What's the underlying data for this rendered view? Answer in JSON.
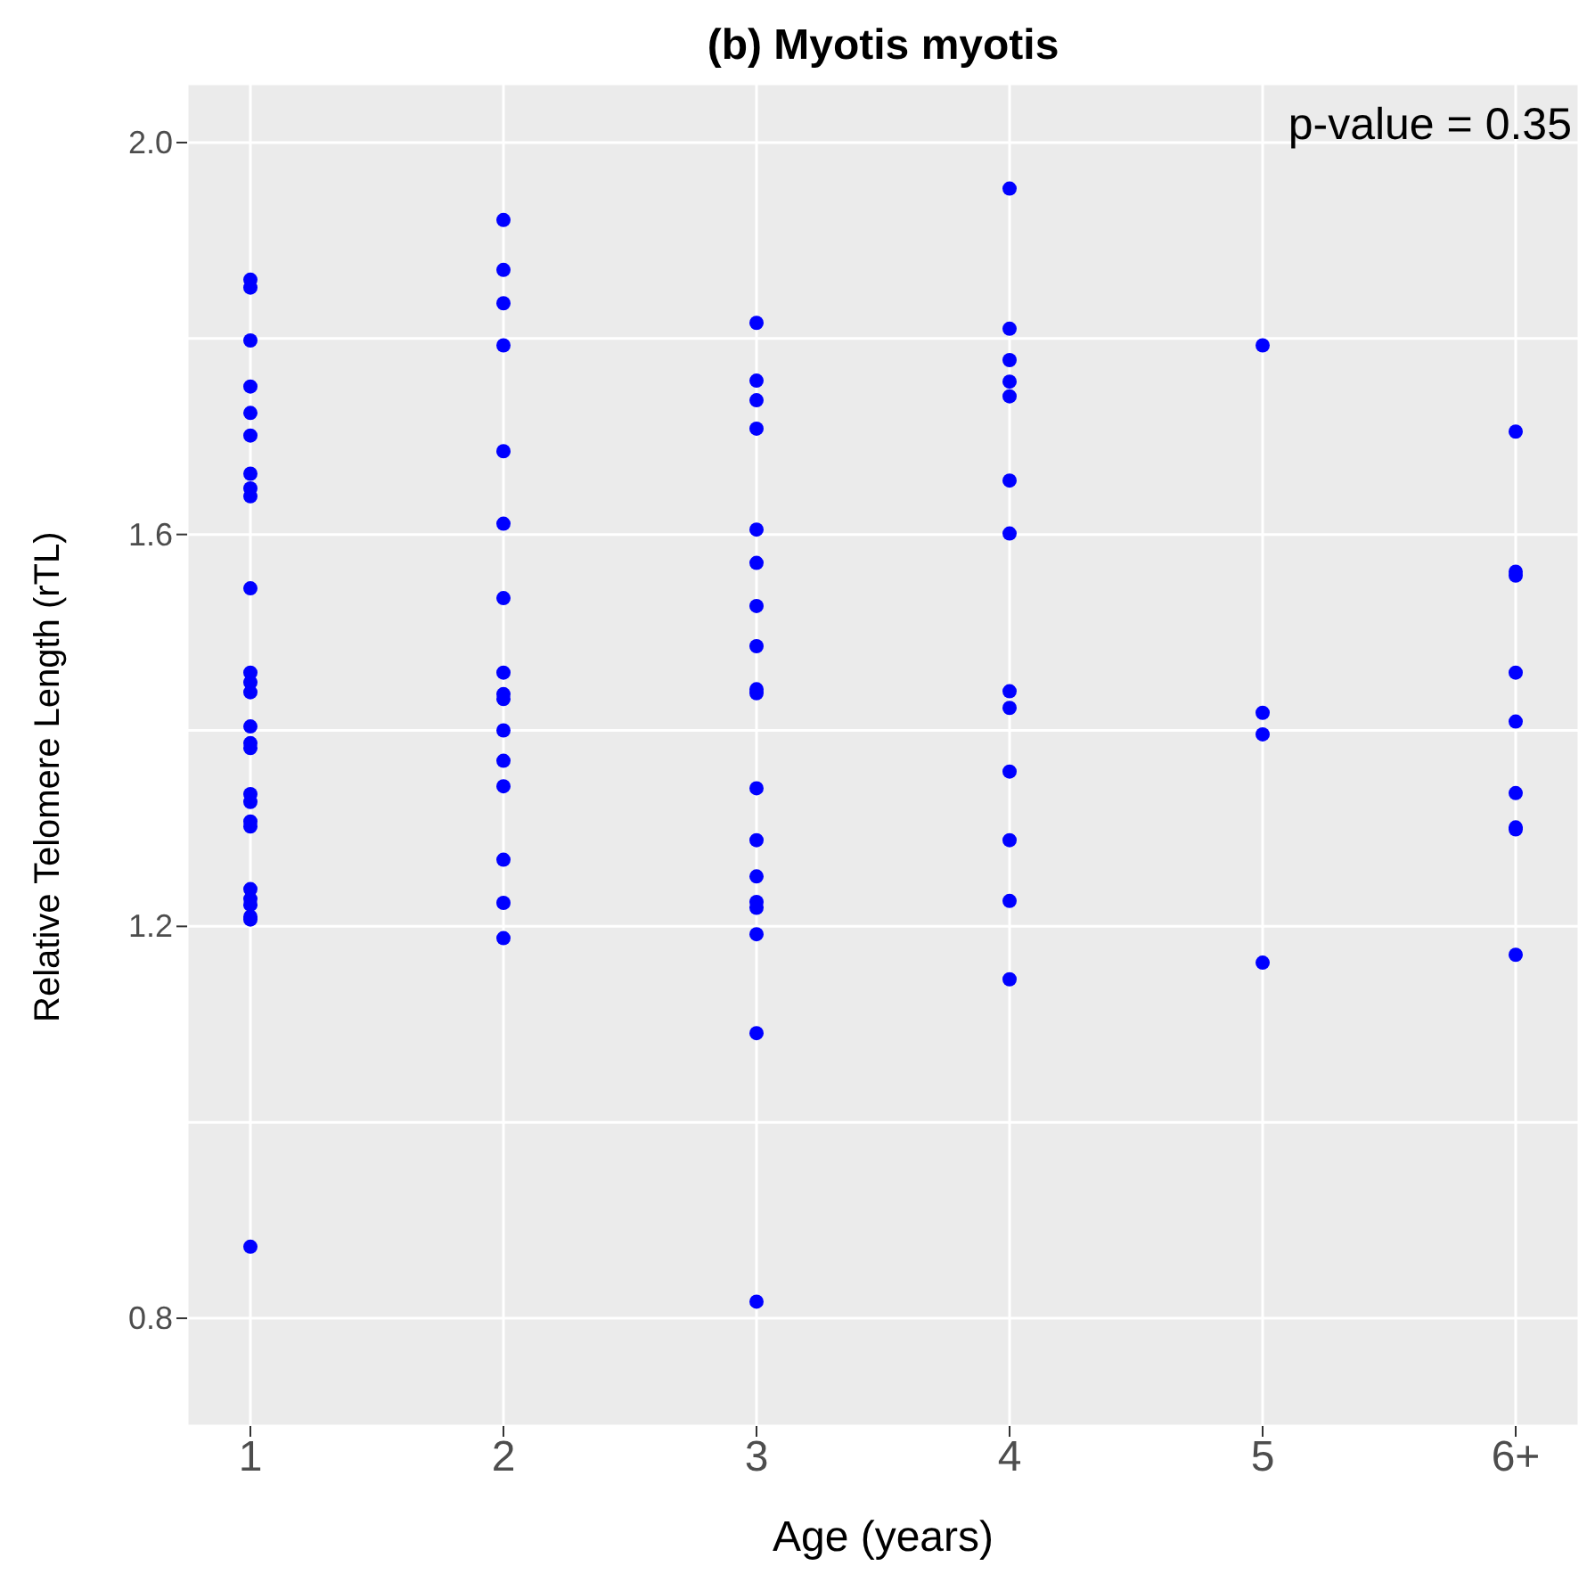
{
  "chart_data": {
    "type": "scatter",
    "title": "(b) Myotis myotis",
    "xlabel": "Age (years)",
    "ylabel": "Relative Telomere Length (rTL)",
    "annotations": [
      "p-value = 0.35"
    ],
    "categories": [
      "1",
      "2",
      "3",
      "4",
      "5",
      "6+"
    ],
    "series": [
      {
        "color": "#0000ff",
        "x": [
          "1",
          "1",
          "1",
          "1",
          "1",
          "1",
          "1",
          "1",
          "1",
          "1",
          "1",
          "1",
          "1",
          "1",
          "1",
          "1",
          "1",
          "1",
          "1",
          "1",
          "1",
          "1",
          "1",
          "1",
          "1",
          "1",
          "2",
          "2",
          "2",
          "2",
          "2",
          "2",
          "2",
          "2",
          "2",
          "2",
          "2",
          "2",
          "2",
          "2",
          "2",
          "2",
          "3",
          "3",
          "3",
          "3",
          "3",
          "3",
          "3",
          "3",
          "3",
          "3",
          "3",
          "3",
          "3",
          "3",
          "3",
          "3",
          "3",
          "3",
          "4",
          "4",
          "4",
          "4",
          "4",
          "4",
          "4",
          "4",
          "4",
          "4",
          "4",
          "4",
          "4",
          "5",
          "5",
          "5",
          "5",
          "6+",
          "6+",
          "6+",
          "6+",
          "6+",
          "6+",
          "6+",
          "6+",
          "6+"
        ],
        "values": [
          1.86,
          1.852,
          1.798,
          1.751,
          1.724,
          1.701,
          1.662,
          1.647,
          1.639,
          1.545,
          1.459,
          1.449,
          1.439,
          1.404,
          1.387,
          1.382,
          1.335,
          1.327,
          1.307,
          1.302,
          1.238,
          1.228,
          1.222,
          1.21,
          1.207,
          0.873,
          1.921,
          1.87,
          1.836,
          1.793,
          1.685,
          1.611,
          1.535,
          1.459,
          1.437,
          1.432,
          1.4,
          1.369,
          1.343,
          1.268,
          1.224,
          1.188,
          1.816,
          1.757,
          1.737,
          1.708,
          1.605,
          1.571,
          1.527,
          1.486,
          1.442,
          1.438,
          1.341,
          1.288,
          1.251,
          1.225,
          1.219,
          1.192,
          1.091,
          0.817,
          1.953,
          1.81,
          1.778,
          1.756,
          1.741,
          1.655,
          1.601,
          1.44,
          1.423,
          1.358,
          1.288,
          1.226,
          1.146,
          1.793,
          1.418,
          1.396,
          1.163,
          1.705,
          1.562,
          1.558,
          1.459,
          1.409,
          1.336,
          1.301,
          1.299,
          1.171
        ]
      }
    ],
    "ylim": [
      0.69,
      2.06
    ],
    "yticks": [
      {
        "value": 0.8,
        "label": "0.8"
      },
      {
        "value": 1.0,
        "label": null
      },
      {
        "value": 1.2,
        "label": "1.2"
      },
      {
        "value": 1.4,
        "label": null
      },
      {
        "value": 1.6,
        "label": "1.6"
      },
      {
        "value": 1.8,
        "label": null
      },
      {
        "value": 2.0,
        "label": "2.0"
      }
    ],
    "grid": true,
    "marker": "circle"
  }
}
